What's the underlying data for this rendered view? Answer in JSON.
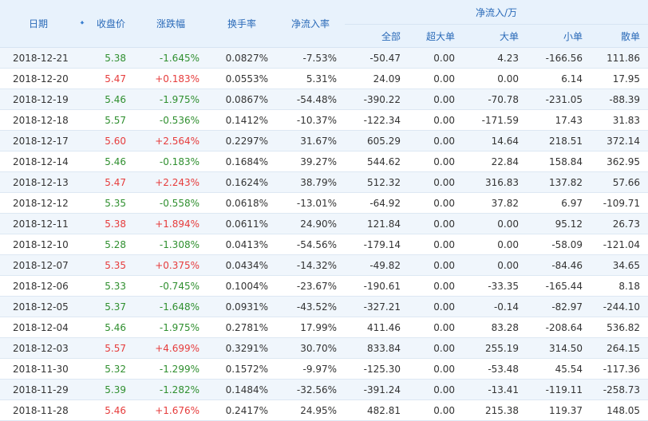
{
  "header": {
    "date": "日期",
    "close": "收盘价",
    "change": "涨跌幅",
    "turnover": "换手率",
    "net_ratio": "净流入率",
    "group": "净流入/万",
    "sub": [
      "全部",
      "超大单",
      "大单",
      "小单",
      "散单"
    ]
  },
  "sort_icon": "arrow-down-icon",
  "colors": {
    "up": "#e63c3c",
    "down": "#2f8f2f",
    "header_text": "#2a6ab8",
    "header_bg": "#e8f2fc"
  },
  "rows": [
    {
      "date": "2018-12-21",
      "close": "5.38",
      "change": "-1.645%",
      "turnover": "0.0827%",
      "ratio": "-7.53%",
      "all": "-50.47",
      "xl": "0.00",
      "lg": "4.23",
      "sm": "-166.56",
      "rt": "111.86",
      "dir": "down"
    },
    {
      "date": "2018-12-20",
      "close": "5.47",
      "change": "+0.183%",
      "turnover": "0.0553%",
      "ratio": "5.31%",
      "all": "24.09",
      "xl": "0.00",
      "lg": "0.00",
      "sm": "6.14",
      "rt": "17.95",
      "dir": "up"
    },
    {
      "date": "2018-12-19",
      "close": "5.46",
      "change": "-1.975%",
      "turnover": "0.0867%",
      "ratio": "-54.48%",
      "all": "-390.22",
      "xl": "0.00",
      "lg": "-70.78",
      "sm": "-231.05",
      "rt": "-88.39",
      "dir": "down"
    },
    {
      "date": "2018-12-18",
      "close": "5.57",
      "change": "-0.536%",
      "turnover": "0.1412%",
      "ratio": "-10.37%",
      "all": "-122.34",
      "xl": "0.00",
      "lg": "-171.59",
      "sm": "17.43",
      "rt": "31.83",
      "dir": "down"
    },
    {
      "date": "2018-12-17",
      "close": "5.60",
      "change": "+2.564%",
      "turnover": "0.2297%",
      "ratio": "31.67%",
      "all": "605.29",
      "xl": "0.00",
      "lg": "14.64",
      "sm": "218.51",
      "rt": "372.14",
      "dir": "up"
    },
    {
      "date": "2018-12-14",
      "close": "5.46",
      "change": "-0.183%",
      "turnover": "0.1684%",
      "ratio": "39.27%",
      "all": "544.62",
      "xl": "0.00",
      "lg": "22.84",
      "sm": "158.84",
      "rt": "362.95",
      "dir": "down"
    },
    {
      "date": "2018-12-13",
      "close": "5.47",
      "change": "+2.243%",
      "turnover": "0.1624%",
      "ratio": "38.79%",
      "all": "512.32",
      "xl": "0.00",
      "lg": "316.83",
      "sm": "137.82",
      "rt": "57.66",
      "dir": "up"
    },
    {
      "date": "2018-12-12",
      "close": "5.35",
      "change": "-0.558%",
      "turnover": "0.0618%",
      "ratio": "-13.01%",
      "all": "-64.92",
      "xl": "0.00",
      "lg": "37.82",
      "sm": "6.97",
      "rt": "-109.71",
      "dir": "down"
    },
    {
      "date": "2018-12-11",
      "close": "5.38",
      "change": "+1.894%",
      "turnover": "0.0611%",
      "ratio": "24.90%",
      "all": "121.84",
      "xl": "0.00",
      "lg": "0.00",
      "sm": "95.12",
      "rt": "26.73",
      "dir": "up"
    },
    {
      "date": "2018-12-10",
      "close": "5.28",
      "change": "-1.308%",
      "turnover": "0.0413%",
      "ratio": "-54.56%",
      "all": "-179.14",
      "xl": "0.00",
      "lg": "0.00",
      "sm": "-58.09",
      "rt": "-121.04",
      "dir": "down"
    },
    {
      "date": "2018-12-07",
      "close": "5.35",
      "change": "+0.375%",
      "turnover": "0.0434%",
      "ratio": "-14.32%",
      "all": "-49.82",
      "xl": "0.00",
      "lg": "0.00",
      "sm": "-84.46",
      "rt": "34.65",
      "dir": "up"
    },
    {
      "date": "2018-12-06",
      "close": "5.33",
      "change": "-0.745%",
      "turnover": "0.1004%",
      "ratio": "-23.67%",
      "all": "-190.61",
      "xl": "0.00",
      "lg": "-33.35",
      "sm": "-165.44",
      "rt": "8.18",
      "dir": "down"
    },
    {
      "date": "2018-12-05",
      "close": "5.37",
      "change": "-1.648%",
      "turnover": "0.0931%",
      "ratio": "-43.52%",
      "all": "-327.21",
      "xl": "0.00",
      "lg": "-0.14",
      "sm": "-82.97",
      "rt": "-244.10",
      "dir": "down"
    },
    {
      "date": "2018-12-04",
      "close": "5.46",
      "change": "-1.975%",
      "turnover": "0.2781%",
      "ratio": "17.99%",
      "all": "411.46",
      "xl": "0.00",
      "lg": "83.28",
      "sm": "-208.64",
      "rt": "536.82",
      "dir": "down"
    },
    {
      "date": "2018-12-03",
      "close": "5.57",
      "change": "+4.699%",
      "turnover": "0.3291%",
      "ratio": "30.70%",
      "all": "833.84",
      "xl": "0.00",
      "lg": "255.19",
      "sm": "314.50",
      "rt": "264.15",
      "dir": "up"
    },
    {
      "date": "2018-11-30",
      "close": "5.32",
      "change": "-1.299%",
      "turnover": "0.1572%",
      "ratio": "-9.97%",
      "all": "-125.30",
      "xl": "0.00",
      "lg": "-53.48",
      "sm": "45.54",
      "rt": "-117.36",
      "dir": "down"
    },
    {
      "date": "2018-11-29",
      "close": "5.39",
      "change": "-1.282%",
      "turnover": "0.1484%",
      "ratio": "-32.56%",
      "all": "-391.24",
      "xl": "0.00",
      "lg": "-13.41",
      "sm": "-119.11",
      "rt": "-258.73",
      "dir": "down"
    },
    {
      "date": "2018-11-28",
      "close": "5.46",
      "change": "+1.676%",
      "turnover": "0.2417%",
      "ratio": "24.95%",
      "all": "482.81",
      "xl": "0.00",
      "lg": "215.38",
      "sm": "119.37",
      "rt": "148.05",
      "dir": "up"
    }
  ]
}
